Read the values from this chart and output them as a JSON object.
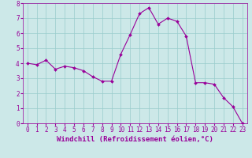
{
  "x": [
    0,
    1,
    2,
    3,
    4,
    5,
    6,
    7,
    8,
    9,
    10,
    11,
    12,
    13,
    14,
    15,
    16,
    17,
    18,
    19,
    20,
    21,
    22,
    23
  ],
  "y": [
    4.0,
    3.9,
    4.2,
    3.6,
    3.8,
    3.7,
    3.5,
    3.1,
    2.8,
    2.8,
    4.6,
    5.9,
    7.3,
    7.7,
    6.6,
    7.0,
    6.8,
    5.8,
    2.7,
    2.7,
    2.6,
    1.7,
    1.1,
    0.0
  ],
  "line_color": "#990099",
  "marker_color": "#990099",
  "bg_color": "#cce8e8",
  "grid_color": "#99cccc",
  "xlabel": "Windchill (Refroidissement éolien,°C)",
  "xlim": [
    -0.5,
    23.5
  ],
  "ylim": [
    0,
    8
  ],
  "xticks": [
    0,
    1,
    2,
    3,
    4,
    5,
    6,
    7,
    8,
    9,
    10,
    11,
    12,
    13,
    14,
    15,
    16,
    17,
    18,
    19,
    20,
    21,
    22,
    23
  ],
  "yticks": [
    0,
    1,
    2,
    3,
    4,
    5,
    6,
    7,
    8
  ],
  "tick_fontsize": 5.5,
  "label_fontsize": 6.5,
  "line_width": 0.8,
  "marker_size": 2.0
}
